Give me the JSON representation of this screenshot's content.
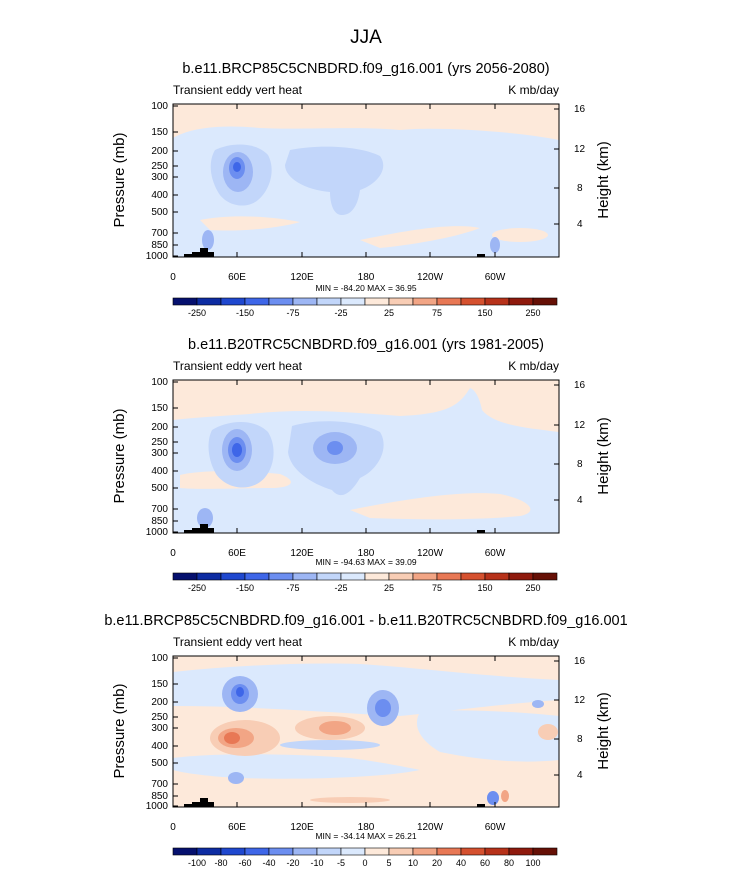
{
  "figure": {
    "main_title": "JJA"
  },
  "chart_data": [
    {
      "type": "heatmap",
      "title": "b.e11.BRCP85C5CNBDRD.f09_g16.001 (yrs 2056-2080)",
      "left_subtitle": "Transient eddy vert heat",
      "right_subtitle": "K mb/day",
      "ylabel": "Pressure (mb)",
      "ylabel_right": "Height (km)",
      "x_ticks": [
        "0",
        "60E",
        "120E",
        "180",
        "120W",
        "60W"
      ],
      "y_ticks": [
        "100",
        "150",
        "200",
        "250",
        "300",
        "400",
        "500",
        "700",
        "850",
        "1000"
      ],
      "y2_ticks": [
        "16",
        "12",
        "8",
        "4"
      ],
      "stats": "MIN = -84.20  MAX = 36.95",
      "colorbar_labels": [
        "-250",
        "-150",
        "-75",
        "-25",
        "25",
        "75",
        "150",
        "250"
      ],
      "colorbar_colors": [
        "#05106e",
        "#0d2ca2",
        "#1f48cf",
        "#3e66e8",
        "#6c8ef0",
        "#9db6f4",
        "#c2d6fa",
        "#dbe9fd",
        "#fde9da",
        "#f8cdb5",
        "#f2a585",
        "#e87855",
        "#d5512f",
        "#b7321a",
        "#8f1a0d",
        "#661006"
      ],
      "regions": [
        {
          "lon": 62,
          "p": 260,
          "value": -80
        },
        {
          "lon": 62,
          "p": 300,
          "value": -45
        },
        {
          "lon": 145,
          "p": 260,
          "value": -35
        },
        {
          "lon": 30,
          "p": 780,
          "value": -30
        }
      ]
    },
    {
      "type": "heatmap",
      "title": "b.e11.B20TRC5CNBDRD.f09_g16.001 (yrs 1981-2005)",
      "left_subtitle": "Transient eddy vert heat",
      "right_subtitle": "K mb/day",
      "ylabel": "Pressure (mb)",
      "ylabel_right": "Height (km)",
      "x_ticks": [
        "0",
        "60E",
        "120E",
        "180",
        "120W",
        "60W"
      ],
      "y_ticks": [
        "100",
        "150",
        "200",
        "250",
        "300",
        "400",
        "500",
        "700",
        "850",
        "1000"
      ],
      "y2_ticks": [
        "16",
        "12",
        "8",
        "4"
      ],
      "stats": "MIN = -94.63  MAX = 39.09",
      "colorbar_labels": [
        "-250",
        "-150",
        "-75",
        "-25",
        "25",
        "75",
        "150",
        "250"
      ],
      "colorbar_colors": [
        "#05106e",
        "#0d2ca2",
        "#1f48cf",
        "#3e66e8",
        "#6c8ef0",
        "#9db6f4",
        "#c2d6fa",
        "#dbe9fd",
        "#fde9da",
        "#f8cdb5",
        "#f2a585",
        "#e87855",
        "#d5512f",
        "#b7321a",
        "#8f1a0d",
        "#661006"
      ],
      "regions": [
        {
          "lon": 62,
          "p": 290,
          "value": -90
        },
        {
          "lon": 150,
          "p": 290,
          "value": -60
        },
        {
          "lon": 100,
          "p": 320,
          "value": -30
        }
      ]
    },
    {
      "type": "heatmap",
      "title": "b.e11.BRCP85C5CNBDRD.f09_g16.001 - b.e11.B20TRC5CNBDRD.f09_g16.001",
      "left_subtitle": "Transient eddy vert heat",
      "right_subtitle": "K mb/day",
      "ylabel": "Pressure (mb)",
      "ylabel_right": "Height (km)",
      "x_ticks": [
        "0",
        "60E",
        "120E",
        "180",
        "120W",
        "60W"
      ],
      "y_ticks": [
        "100",
        "150",
        "200",
        "250",
        "300",
        "400",
        "500",
        "700",
        "850",
        "1000"
      ],
      "y2_ticks": [
        "16",
        "12",
        "8",
        "4"
      ],
      "stats": "MIN = -34.14  MAX = 26.21",
      "colorbar_labels": [
        "-100",
        "-80",
        "-60",
        "-40",
        "-20",
        "-10",
        "-5",
        "0",
        "5",
        "10",
        "20",
        "40",
        "60",
        "80",
        "100"
      ],
      "colorbar_colors": [
        "#05106e",
        "#0d2ca2",
        "#1f48cf",
        "#3e66e8",
        "#6c8ef0",
        "#9db6f4",
        "#c2d6fa",
        "#dbe9fd",
        "#fde9da",
        "#f8cdb5",
        "#f2a585",
        "#e87855",
        "#d5512f",
        "#b7321a",
        "#8f1a0d",
        "#661006"
      ],
      "regions": [
        {
          "lon": 62,
          "p": 200,
          "value": -25
        },
        {
          "lon": 190,
          "p": 210,
          "value": -22
        },
        {
          "lon": 55,
          "p": 350,
          "value": 22
        },
        {
          "lon": 150,
          "p": 340,
          "value": 18
        }
      ]
    }
  ]
}
